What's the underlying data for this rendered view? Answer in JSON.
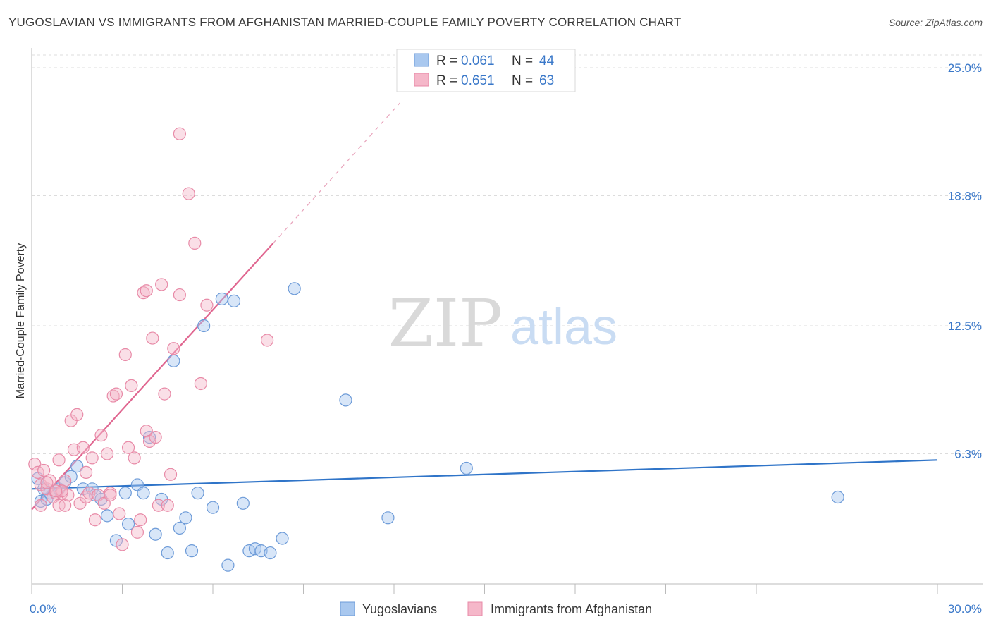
{
  "header": {
    "title": "YUGOSLAVIAN VS IMMIGRANTS FROM AFGHANISTAN MARRIED-COUPLE FAMILY POVERTY CORRELATION CHART",
    "source": "Source: ZipAtlas.com"
  },
  "watermark": {
    "zip": "ZIP",
    "atlas": "atlas"
  },
  "colors": {
    "blue_fill": "#a9c8ef",
    "blue_stroke": "#6d9bd8",
    "blue_line": "#2f74c8",
    "pink_fill": "#f5b7c9",
    "pink_stroke": "#e88aa7",
    "pink_line": "#e06690",
    "axis_label": "#3a78c9",
    "grid": "#dcdcdc"
  },
  "chart_data": {
    "type": "scatter",
    "title": "YUGOSLAVIAN VS IMMIGRANTS FROM AFGHANISTAN MARRIED-COUPLE FAMILY POVERTY CORRELATION CHART",
    "xlabel": "",
    "ylabel": "Married-Couple Family Poverty",
    "xlim": [
      0,
      30
    ],
    "ylim": [
      0,
      25
    ],
    "x_tick_labels": [
      "0.0%",
      "30.0%"
    ],
    "y_ticks": [
      6.3,
      12.5,
      18.8,
      25.0
    ],
    "y_tick_labels": [
      "6.3%",
      "12.5%",
      "18.8%",
      "25.0%"
    ],
    "grid": true,
    "legend_position": "top-center",
    "stats": [
      {
        "r_label": "R = ",
        "r_value": "0.061",
        "n_label": "N = ",
        "n_value": "44"
      },
      {
        "r_label": "R = ",
        "r_value": "0.651",
        "n_label": "N = ",
        "n_value": "63"
      }
    ],
    "series": [
      {
        "name": "Yugoslavians",
        "color": "#a9c8ef",
        "trend": {
          "x": [
            0,
            30
          ],
          "y": [
            4.6,
            6.0
          ]
        },
        "points": [
          {
            "x": 0.2,
            "y": 5.1
          },
          {
            "x": 0.3,
            "y": 4.0
          },
          {
            "x": 0.5,
            "y": 4.1
          },
          {
            "x": 0.6,
            "y": 4.4
          },
          {
            "x": 0.9,
            "y": 4.6
          },
          {
            "x": 1.1,
            "y": 4.9
          },
          {
            "x": 1.3,
            "y": 5.2
          },
          {
            "x": 1.5,
            "y": 5.7
          },
          {
            "x": 1.7,
            "y": 4.6
          },
          {
            "x": 2.0,
            "y": 4.6
          },
          {
            "x": 2.1,
            "y": 4.3
          },
          {
            "x": 2.3,
            "y": 4.1
          },
          {
            "x": 2.5,
            "y": 3.3
          },
          {
            "x": 2.8,
            "y": 2.1
          },
          {
            "x": 3.1,
            "y": 4.4
          },
          {
            "x": 3.2,
            "y": 2.9
          },
          {
            "x": 3.5,
            "y": 4.8
          },
          {
            "x": 3.7,
            "y": 4.4
          },
          {
            "x": 3.9,
            "y": 7.1
          },
          {
            "x": 4.1,
            "y": 2.4
          },
          {
            "x": 4.3,
            "y": 4.1
          },
          {
            "x": 4.5,
            "y": 1.5
          },
          {
            "x": 4.7,
            "y": 10.8
          },
          {
            "x": 4.9,
            "y": 2.7
          },
          {
            "x": 5.1,
            "y": 3.2
          },
          {
            "x": 5.3,
            "y": 1.6
          },
          {
            "x": 5.5,
            "y": 4.4
          },
          {
            "x": 5.7,
            "y": 12.5
          },
          {
            "x": 6.0,
            "y": 3.7
          },
          {
            "x": 6.3,
            "y": 13.8
          },
          {
            "x": 6.5,
            "y": 0.9
          },
          {
            "x": 6.7,
            "y": 13.7
          },
          {
            "x": 7.0,
            "y": 3.9
          },
          {
            "x": 7.2,
            "y": 1.6
          },
          {
            "x": 7.4,
            "y": 1.7
          },
          {
            "x": 7.6,
            "y": 1.6
          },
          {
            "x": 7.9,
            "y": 1.5
          },
          {
            "x": 8.3,
            "y": 2.2
          },
          {
            "x": 8.7,
            "y": 14.3
          },
          {
            "x": 10.4,
            "y": 8.9
          },
          {
            "x": 11.8,
            "y": 3.2
          },
          {
            "x": 14.4,
            "y": 5.6
          },
          {
            "x": 26.7,
            "y": 4.2
          },
          {
            "x": 0.4,
            "y": 4.6
          }
        ]
      },
      {
        "name": "Immigrants from Afghanistan",
        "color": "#f5b7c9",
        "trend": {
          "x": [
            0,
            8
          ],
          "y": [
            3.6,
            16.5
          ]
        },
        "trend_dashed": {
          "x": [
            8,
            12.2
          ],
          "y": [
            16.5,
            23.3
          ]
        },
        "points": [
          {
            "x": 0.1,
            "y": 5.8
          },
          {
            "x": 0.2,
            "y": 5.4
          },
          {
            "x": 0.3,
            "y": 4.8
          },
          {
            "x": 0.3,
            "y": 3.8
          },
          {
            "x": 0.4,
            "y": 5.5
          },
          {
            "x": 0.5,
            "y": 4.6
          },
          {
            "x": 0.6,
            "y": 5.0
          },
          {
            "x": 0.7,
            "y": 4.2
          },
          {
            "x": 0.8,
            "y": 4.4
          },
          {
            "x": 0.9,
            "y": 3.8
          },
          {
            "x": 0.9,
            "y": 6.0
          },
          {
            "x": 1.0,
            "y": 4.4
          },
          {
            "x": 1.1,
            "y": 3.8
          },
          {
            "x": 1.1,
            "y": 5.0
          },
          {
            "x": 1.2,
            "y": 4.3
          },
          {
            "x": 1.3,
            "y": 7.9
          },
          {
            "x": 1.4,
            "y": 6.5
          },
          {
            "x": 1.5,
            "y": 8.2
          },
          {
            "x": 1.6,
            "y": 3.9
          },
          {
            "x": 1.7,
            "y": 6.6
          },
          {
            "x": 1.8,
            "y": 4.2
          },
          {
            "x": 1.8,
            "y": 5.4
          },
          {
            "x": 1.9,
            "y": 4.4
          },
          {
            "x": 2.0,
            "y": 6.1
          },
          {
            "x": 2.1,
            "y": 3.1
          },
          {
            "x": 2.2,
            "y": 4.3
          },
          {
            "x": 2.3,
            "y": 7.2
          },
          {
            "x": 2.4,
            "y": 3.9
          },
          {
            "x": 2.5,
            "y": 6.3
          },
          {
            "x": 2.6,
            "y": 4.4
          },
          {
            "x": 2.7,
            "y": 9.1
          },
          {
            "x": 2.8,
            "y": 9.2
          },
          {
            "x": 2.9,
            "y": 3.4
          },
          {
            "x": 3.0,
            "y": 1.9
          },
          {
            "x": 3.1,
            "y": 11.1
          },
          {
            "x": 3.2,
            "y": 6.6
          },
          {
            "x": 3.3,
            "y": 9.6
          },
          {
            "x": 3.4,
            "y": 6.1
          },
          {
            "x": 3.5,
            "y": 2.5
          },
          {
            "x": 3.6,
            "y": 3.1
          },
          {
            "x": 3.7,
            "y": 14.1
          },
          {
            "x": 3.8,
            "y": 7.4
          },
          {
            "x": 3.8,
            "y": 14.2
          },
          {
            "x": 3.9,
            "y": 6.9
          },
          {
            "x": 4.0,
            "y": 11.9
          },
          {
            "x": 4.1,
            "y": 7.1
          },
          {
            "x": 4.2,
            "y": 3.8
          },
          {
            "x": 4.3,
            "y": 14.5
          },
          {
            "x": 4.4,
            "y": 9.2
          },
          {
            "x": 4.5,
            "y": 3.8
          },
          {
            "x": 4.6,
            "y": 5.3
          },
          {
            "x": 4.7,
            "y": 11.4
          },
          {
            "x": 4.9,
            "y": 14.0
          },
          {
            "x": 4.9,
            "y": 21.8
          },
          {
            "x": 5.2,
            "y": 18.9
          },
          {
            "x": 5.4,
            "y": 16.5
          },
          {
            "x": 5.6,
            "y": 9.7
          },
          {
            "x": 5.8,
            "y": 13.5
          },
          {
            "x": 7.8,
            "y": 11.8
          },
          {
            "x": 0.5,
            "y": 4.9
          },
          {
            "x": 1.0,
            "y": 4.5
          },
          {
            "x": 2.6,
            "y": 4.3
          },
          {
            "x": 0.8,
            "y": 4.5
          }
        ]
      }
    ]
  }
}
